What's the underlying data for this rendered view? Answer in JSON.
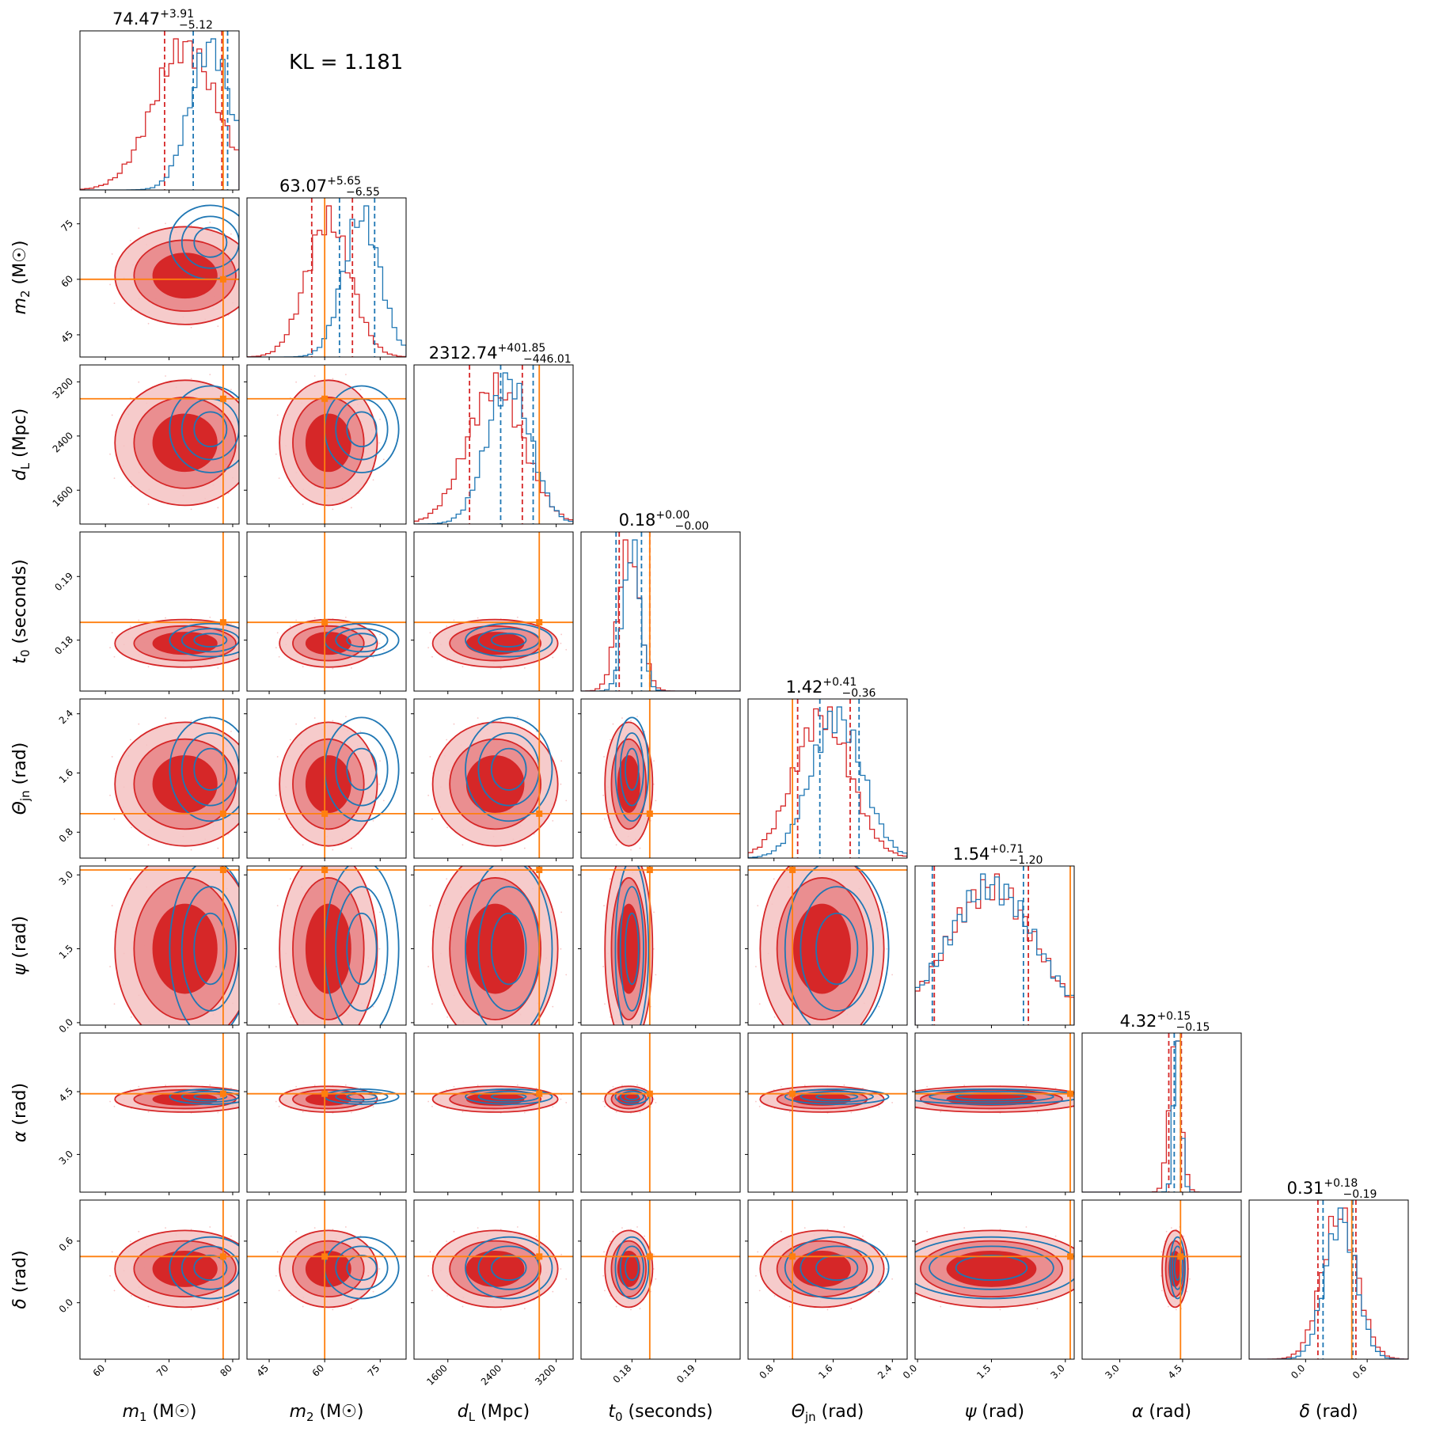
{
  "kl_text": "KL = 1.181",
  "colors": {
    "posterior_a": "#d62728",
    "posterior_b": "#1f77b4",
    "truth": "#ff7f0e",
    "frame": "#000000"
  },
  "chart_data": {
    "type": "corner",
    "title": "",
    "series": [
      {
        "name": "",
        "color": "#d62728",
        "style": "filled-contours-and-step-histograms"
      },
      {
        "name": "",
        "color": "#1f77b4",
        "style": "line-contours-and-step-histograms"
      }
    ],
    "grid": false,
    "legend": "none",
    "parameters": [
      {
        "key": "m1",
        "label": "m1 (M☉)",
        "label_main": "m",
        "label_sub": "1",
        "label_unit": " (M☉)",
        "range": [
          56,
          81
        ],
        "ticks": [
          60,
          70,
          80
        ],
        "tick_labels": [
          "60",
          "70",
          "80"
        ],
        "truth": 78.5,
        "summary": {
          "median": "74.47",
          "plus": "+3.91",
          "minus": "−5.12"
        },
        "red": {
          "mean": 72.5,
          "sd": 5.0,
          "q": [
            69.3,
            78.3
          ]
        },
        "blue": {
          "mean": 76.5,
          "sd": 3.2,
          "q": [
            73.8,
            79.2
          ]
        },
        "blue_quantile_extra": 80.0
      },
      {
        "key": "m2",
        "label": "m2 (M☉)",
        "label_main": "m",
        "label_sub": "2",
        "label_unit": " (M☉)",
        "range": [
          39,
          82
        ],
        "ticks": [
          45,
          60,
          75
        ],
        "tick_labels": [
          "45",
          "60",
          "75"
        ],
        "truth": 60.0,
        "summary": {
          "median": "63.07",
          "plus": "+5.65",
          "minus": "−6.55"
        },
        "red": {
          "mean": 61.0,
          "sd": 6.0,
          "q": [
            56.5,
            67.5
          ]
        },
        "blue": {
          "mean": 70.0,
          "sd": 5.0,
          "q": [
            64.0,
            73.5
          ]
        }
      },
      {
        "key": "dL",
        "label": "dL (Mpc)",
        "label_main": "d",
        "label_sub": "L",
        "label_unit": " (Mpc)",
        "range": [
          1100,
          3450
        ],
        "ticks": [
          1600,
          2400,
          3200
        ],
        "tick_labels": [
          "1600",
          "2400",
          "3200"
        ],
        "truth": 2950,
        "summary": {
          "median": "2312.74",
          "plus": "+401.85",
          "minus": "−446.01"
        },
        "red": {
          "mean": 2300,
          "sd": 420,
          "q": [
            1920,
            2700
          ]
        },
        "blue": {
          "mean": 2500,
          "sd": 320,
          "q": [
            2380,
            2860
          ]
        }
      },
      {
        "key": "t0",
        "label": "t0 (seconds)",
        "label_main": "t",
        "label_sub": "0",
        "label_unit": " (seconds)",
        "range": [
          0.172,
          0.197
        ],
        "ticks": [
          0.18,
          0.19
        ],
        "tick_labels": [
          "0.18",
          "0.19"
        ],
        "truth": 0.1828,
        "summary": {
          "median": "0.18",
          "plus": "+0.00",
          "minus": "−0.00"
        },
        "red": {
          "mean": 0.1795,
          "sd": 0.0017,
          "q": [
            0.178,
            0.1828
          ]
        },
        "blue": {
          "mean": 0.18,
          "sd": 0.0013,
          "q": [
            0.1775,
            0.1815
          ]
        }
      },
      {
        "key": "theta_jn",
        "label": "Θjn (rad)",
        "label_main": "Θ",
        "label_sub": "jn",
        "label_unit": " (rad)",
        "range": [
          0.45,
          2.6
        ],
        "ticks": [
          0.8,
          1.6,
          2.4
        ],
        "tick_labels": [
          "0.8",
          "1.6",
          "2.4"
        ],
        "truth": 1.05,
        "summary": {
          "median": "1.42",
          "plus": "+0.41",
          "minus": "−0.36"
        },
        "red": {
          "mean": 1.45,
          "sd": 0.38,
          "q": [
            1.12,
            1.83
          ]
        },
        "blue": {
          "mean": 1.65,
          "sd": 0.35,
          "q": [
            1.42,
            1.95
          ]
        }
      },
      {
        "key": "psi",
        "label": "ψ (rad)",
        "label_main": "ψ",
        "label_sub": "",
        "label_unit": " (rad)",
        "range": [
          -0.05,
          3.18
        ],
        "ticks": [
          0.0,
          1.5,
          3.0
        ],
        "tick_labels": [
          "0.0",
          "1.5",
          "3.0"
        ],
        "truth": 3.1,
        "summary": {
          "median": "1.54",
          "plus": "+0.71",
          "minus": "−1.20"
        },
        "red": {
          "mean": 1.5,
          "sd": 0.9,
          "q": [
            0.34,
            2.25
          ]
        },
        "blue": {
          "mean": 1.5,
          "sd": 0.9,
          "q": [
            0.3,
            2.15
          ]
        }
      },
      {
        "key": "alpha",
        "label": "α (rad)",
        "label_main": "α",
        "label_sub": "",
        "label_unit": " (rad)",
        "range": [
          2.1,
          5.9
        ],
        "ticks": [
          3.0,
          4.5
        ],
        "tick_labels": [
          "3.0",
          "4.5"
        ],
        "truth": 4.45,
        "summary": {
          "median": "4.32",
          "plus": "+0.15",
          "minus": "−0.15"
        },
        "red": {
          "mean": 4.32,
          "sd": 0.14,
          "q": [
            4.17,
            4.47
          ]
        },
        "blue": {
          "mean": 4.38,
          "sd": 0.09,
          "q": [
            4.3,
            4.45
          ]
        }
      },
      {
        "key": "delta",
        "label": "δ (rad)",
        "label_main": "δ",
        "label_sub": "",
        "label_unit": " (rad)",
        "range": [
          -0.55,
          1.0
        ],
        "ticks": [
          0.0,
          0.6
        ],
        "tick_labels": [
          "0.0",
          "0.6"
        ],
        "truth": 0.45,
        "summary": {
          "median": "0.31",
          "plus": "+0.18",
          "minus": "−0.19"
        },
        "red": {
          "mean": 0.33,
          "sd": 0.17,
          "q": [
            0.12,
            0.49
          ]
        },
        "blue": {
          "mean": 0.34,
          "sd": 0.15,
          "q": [
            0.17,
            0.46
          ]
        }
      }
    ]
  }
}
